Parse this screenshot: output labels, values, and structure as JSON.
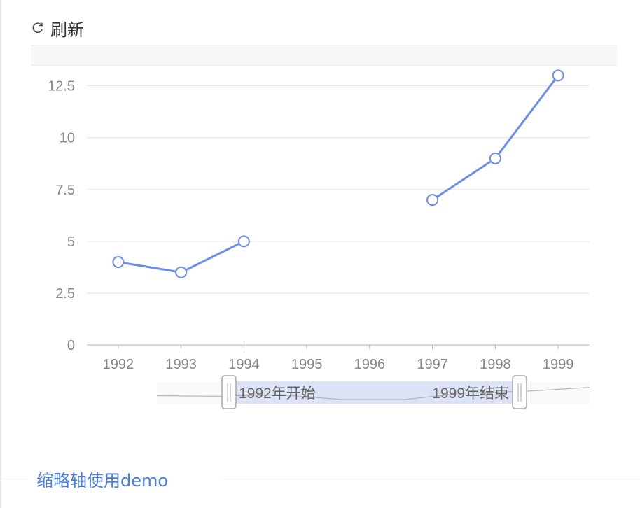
{
  "toolbar": {
    "refresh_icon": "refresh-icon",
    "refresh_label": "刷新"
  },
  "footer": {
    "title": "缩略轴使用demo"
  },
  "colors": {
    "line": "#6b8fe8",
    "axis": "#b8b8b8",
    "grid": "#e3e3e3",
    "label": "#888888",
    "slider_fill": "#dde3f6"
  },
  "chart_data": {
    "type": "line",
    "title": "",
    "xlabel": "",
    "ylabel": "",
    "categories": [
      "1992",
      "1993",
      "1994",
      "1995",
      "1996",
      "1997",
      "1998",
      "1999"
    ],
    "series": [
      {
        "values": [
          4,
          3.5,
          5,
          null,
          null,
          7,
          9,
          13
        ]
      }
    ],
    "ylim": [
      0,
      13.5
    ],
    "yticks": [
      0,
      2.5,
      5,
      7.5,
      10,
      12.5
    ],
    "ytick_labels": [
      "0",
      "2.5",
      "5",
      "7.5",
      "10",
      "12.5"
    ],
    "grid": true,
    "slider": {
      "start_text": "1992年开始",
      "end_text": "1999年结束",
      "start_index": 0,
      "end_index": 7
    }
  }
}
